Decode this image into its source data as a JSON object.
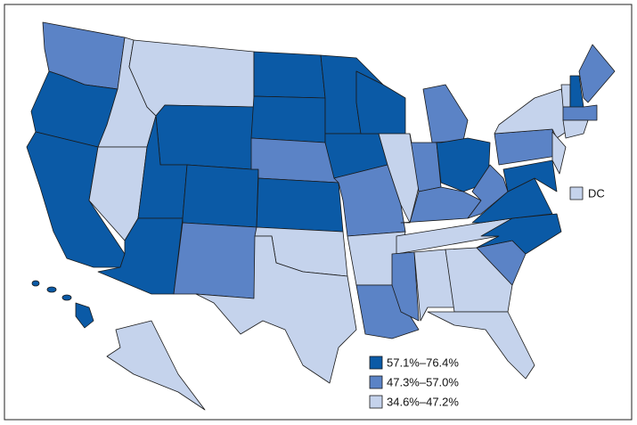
{
  "legend": {
    "items": [
      {
        "label": "57.1%–76.4%",
        "color": "#0b5aa6"
      },
      {
        "label": "47.3%–57.0%",
        "color": "#5b83c6"
      },
      {
        "label": "34.6%–47.2%",
        "color": "#c5d3ec"
      }
    ]
  },
  "dc_label": "DC"
}
